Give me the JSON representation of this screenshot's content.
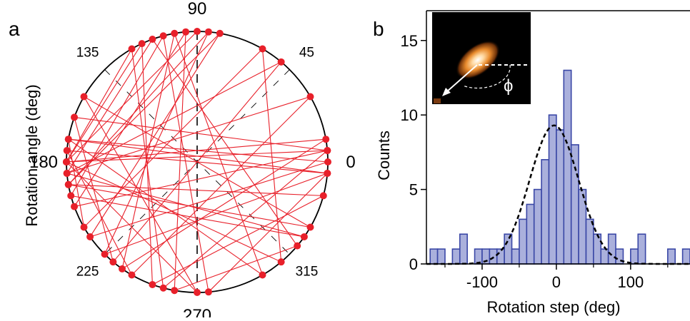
{
  "panels": {
    "a": {
      "label": "a"
    },
    "b": {
      "label": "b"
    }
  },
  "colors": {
    "trajectory": "#e8202a",
    "bar_fill": "#aab0dc",
    "bar_edge": "#3a47a6",
    "fit": "#000000"
  },
  "chart_data": [
    {
      "type": "polar",
      "panel": "a",
      "ylabel": "Rotation angle (deg)",
      "angle_ticks": [
        {
          "angle": 0,
          "label": "0"
        },
        {
          "angle": 45,
          "label": "45"
        },
        {
          "angle": 90,
          "label": "90"
        },
        {
          "angle": 135,
          "label": "135"
        },
        {
          "angle": 180,
          "label": "180"
        },
        {
          "angle": 225,
          "label": "225"
        },
        {
          "angle": 270,
          "label": "270"
        },
        {
          "angle": 315,
          "label": "315"
        }
      ],
      "reference_lines": [
        90,
        45,
        135
      ],
      "angles": [
        90,
        180,
        5,
        200,
        95,
        260,
        320,
        110,
        185,
        30,
        240,
        175,
        355,
        225,
        85,
        190,
        330,
        150,
        270,
        180,
        10,
        235,
        100,
        300,
        170,
        0,
        215,
        80,
        190,
        345,
        250,
        115,
        180,
        310,
        60,
        210,
        170,
        355,
        275,
        105,
        195,
        325,
        185,
        50,
        230,
        160,
        5,
        255,
        120,
        180
      ]
    },
    {
      "type": "bar",
      "panel": "b",
      "xlabel": "Rotation step (deg)",
      "ylabel": "Counts",
      "xlim": [
        -175,
        180
      ],
      "ylim": [
        0,
        17
      ],
      "xticks": [
        -100,
        0,
        100
      ],
      "yticks": [
        0,
        5,
        10,
        15
      ],
      "bin_width": 10,
      "bin_starts": [
        -170,
        -160,
        -150,
        -140,
        -130,
        -120,
        -110,
        -100,
        -90,
        -80,
        -70,
        -60,
        -50,
        -40,
        -30,
        -20,
        -10,
        0,
        10,
        20,
        30,
        40,
        50,
        60,
        70,
        80,
        90,
        100,
        110,
        120,
        130,
        140,
        150,
        160,
        170
      ],
      "counts": [
        1,
        1,
        0,
        1,
        2,
        0,
        1,
        1,
        1,
        1,
        2,
        1,
        3,
        4,
        5,
        7,
        10,
        9,
        13,
        8,
        5,
        3,
        2,
        1,
        2,
        1,
        0,
        1,
        2,
        0,
        0,
        0,
        1,
        0,
        1
      ],
      "fit": {
        "type": "gaussian",
        "amplitude": 9.3,
        "mean": -3,
        "sigma": 33
      },
      "inset": {
        "angle_symbol": "ϕ"
      }
    }
  ]
}
